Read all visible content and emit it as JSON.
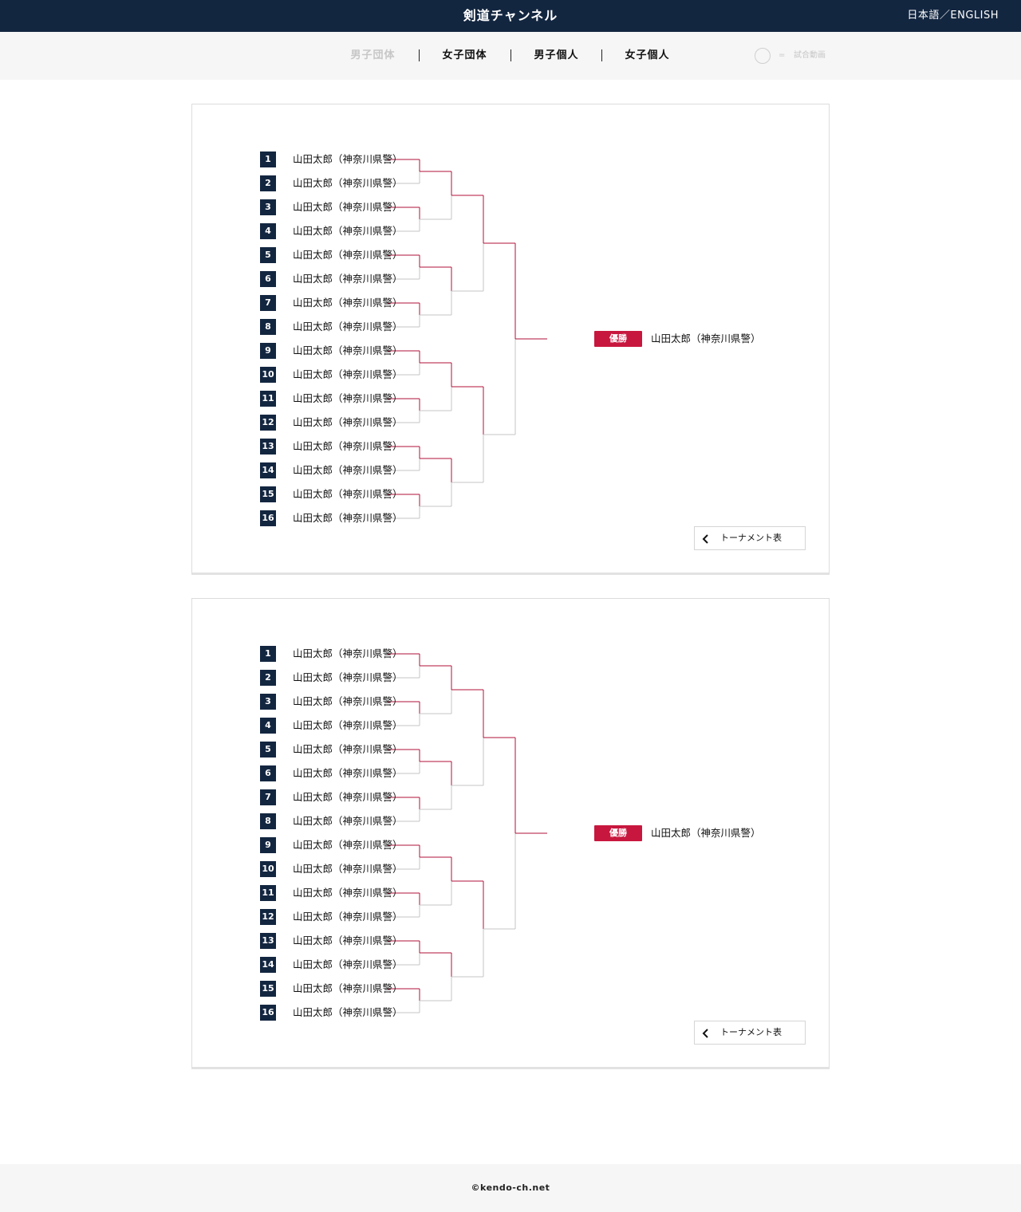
{
  "header": {
    "title": "剣道チャンネル",
    "language_switch": "日本語／ENGLISH"
  },
  "nav": {
    "tabs": [
      {
        "label": "男子団体",
        "active": false
      },
      {
        "label": "女子団体",
        "active": true
      },
      {
        "label": "男子個人",
        "active": true
      },
      {
        "label": "女子個人",
        "active": true
      }
    ],
    "legend": {
      "equals": "=",
      "label": "試合動画"
    }
  },
  "colors": {
    "navy": "#132640",
    "accent_red": "#c8173e",
    "winner_line": "#b0103a",
    "loser_line": "#c4c4c4"
  },
  "brackets": [
    {
      "players": [
        {
          "seed": "1",
          "name": "山田太郎（神奈川県警）"
        },
        {
          "seed": "2",
          "name": "山田太郎（神奈川県警）"
        },
        {
          "seed": "3",
          "name": "山田太郎（神奈川県警）"
        },
        {
          "seed": "4",
          "name": "山田太郎（神奈川県警）"
        },
        {
          "seed": "5",
          "name": "山田太郎（神奈川県警）"
        },
        {
          "seed": "6",
          "name": "山田太郎（神奈川県警）"
        },
        {
          "seed": "7",
          "name": "山田太郎（神奈川県警）"
        },
        {
          "seed": "8",
          "name": "山田太郎（神奈川県警）"
        },
        {
          "seed": "9",
          "name": "山田太郎（神奈川県警）"
        },
        {
          "seed": "10",
          "name": "山田太郎（神奈川県警）"
        },
        {
          "seed": "11",
          "name": "山田太郎（神奈川県警）"
        },
        {
          "seed": "12",
          "name": "山田太郎（神奈川県警）"
        },
        {
          "seed": "13",
          "name": "山田太郎（神奈川県警）"
        },
        {
          "seed": "14",
          "name": "山田太郎（神奈川県警）"
        },
        {
          "seed": "15",
          "name": "山田太郎（神奈川県警）"
        },
        {
          "seed": "16",
          "name": "山田太郎（神奈川県警）"
        }
      ],
      "winner": {
        "badge": "優勝",
        "name": "山田太郎（神奈川県警）"
      },
      "button_label": "トーナメント表"
    },
    {
      "players": [
        {
          "seed": "1",
          "name": "山田太郎（神奈川県警）"
        },
        {
          "seed": "2",
          "name": "山田太郎（神奈川県警）"
        },
        {
          "seed": "3",
          "name": "山田太郎（神奈川県警）"
        },
        {
          "seed": "4",
          "name": "山田太郎（神奈川県警）"
        },
        {
          "seed": "5",
          "name": "山田太郎（神奈川県警）"
        },
        {
          "seed": "6",
          "name": "山田太郎（神奈川県警）"
        },
        {
          "seed": "7",
          "name": "山田太郎（神奈川県警）"
        },
        {
          "seed": "8",
          "name": "山田太郎（神奈川県警）"
        },
        {
          "seed": "9",
          "name": "山田太郎（神奈川県警）"
        },
        {
          "seed": "10",
          "name": "山田太郎（神奈川県警）"
        },
        {
          "seed": "11",
          "name": "山田太郎（神奈川県警）"
        },
        {
          "seed": "12",
          "name": "山田太郎（神奈川県警）"
        },
        {
          "seed": "13",
          "name": "山田太郎（神奈川県警）"
        },
        {
          "seed": "14",
          "name": "山田太郎（神奈川県警）"
        },
        {
          "seed": "15",
          "name": "山田太郎（神奈川県警）"
        },
        {
          "seed": "16",
          "name": "山田太郎（神奈川県警）"
        }
      ],
      "winner": {
        "badge": "優勝",
        "name": "山田太郎（神奈川県警）"
      },
      "button_label": "トーナメント表"
    }
  ],
  "footer": {
    "copyright": "©kendo-ch.net"
  }
}
